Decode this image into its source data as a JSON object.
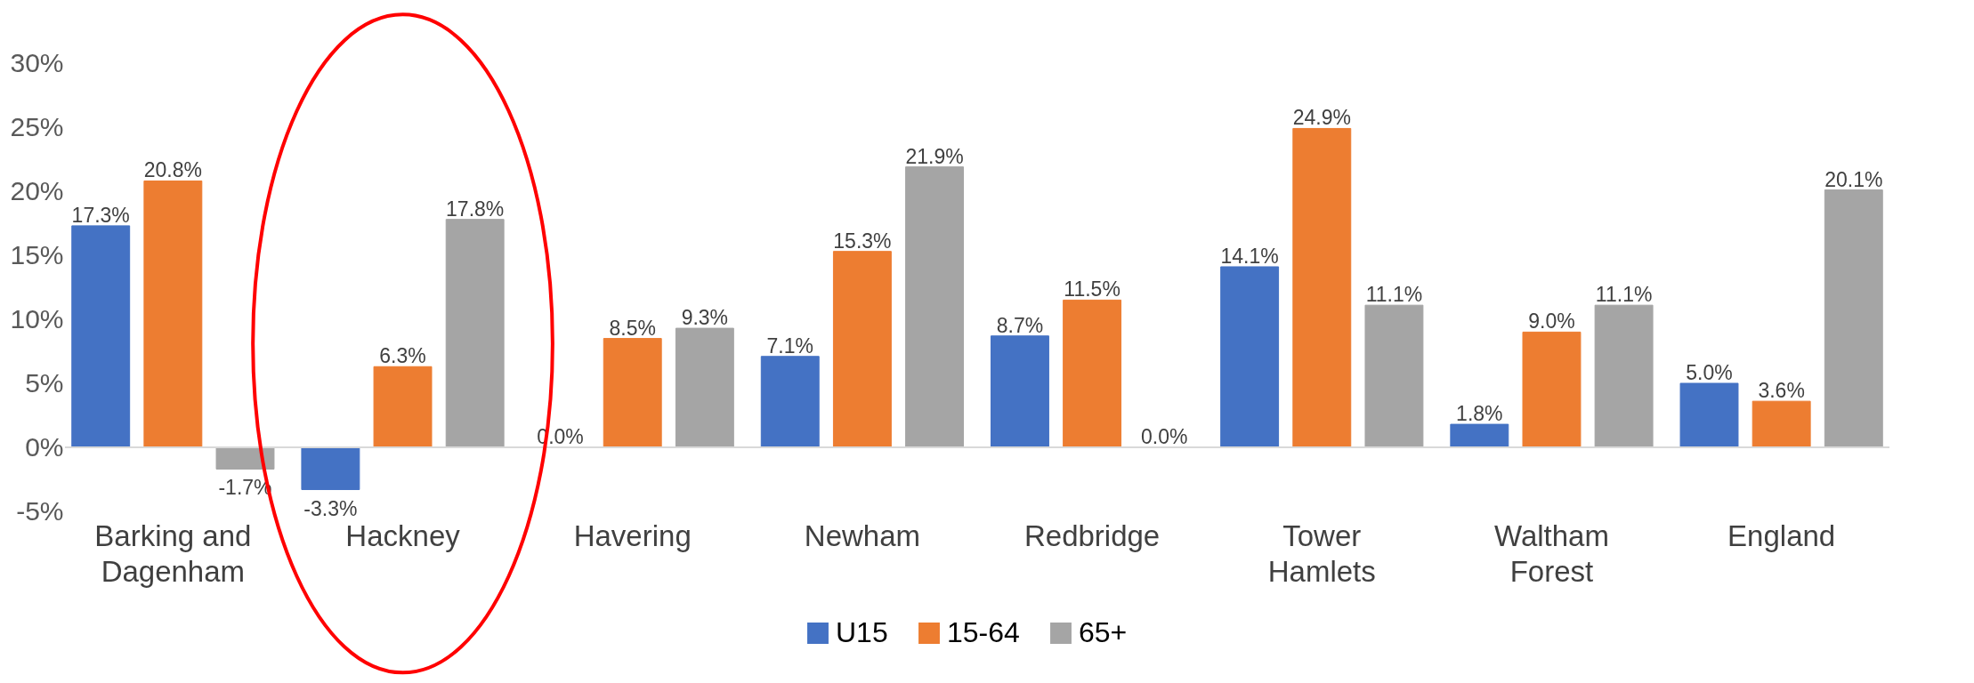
{
  "chart_data": {
    "type": "bar",
    "categories": [
      "Barking and Dagenham",
      "Hackney",
      "Havering",
      "Newham",
      "Redbridge",
      "Tower Hamlets",
      "Waltham Forest",
      "England"
    ],
    "series": [
      {
        "name": "U15",
        "color": "#4472c4",
        "values": [
          17.3,
          -3.3,
          0.0,
          7.1,
          8.7,
          14.1,
          1.8,
          5.0
        ],
        "value_labels": [
          "17.3%",
          "-3.3%",
          "0.0%",
          "7.1%",
          "8.7%",
          "14.1%",
          "1.8%",
          "5.0%"
        ]
      },
      {
        "name": "15-64",
        "color": "#ed7d31",
        "values": [
          20.8,
          6.3,
          8.5,
          15.3,
          11.5,
          24.9,
          9.0,
          3.6
        ],
        "value_labels": [
          "20.8%",
          "6.3%",
          "8.5%",
          "15.3%",
          "11.5%",
          "24.9%",
          "9.0%",
          "3.6%"
        ]
      },
      {
        "name": "65+",
        "color": "#a5a5a5",
        "values": [
          -1.7,
          17.8,
          9.3,
          21.9,
          0.0,
          11.1,
          11.1,
          20.1
        ],
        "value_labels": [
          "-1.7%",
          "17.8%",
          "9.3%",
          "21.9%",
          "0.0%",
          "11.1%",
          "11.1%",
          "20.1%"
        ]
      }
    ],
    "ylim": [
      -5,
      30
    ],
    "yticks": [
      {
        "value": -5,
        "label": "-5%"
      },
      {
        "value": 0,
        "label": "0%"
      },
      {
        "value": 5,
        "label": "5%"
      },
      {
        "value": 10,
        "label": "10%"
      },
      {
        "value": 15,
        "label": "15%"
      },
      {
        "value": 20,
        "label": "20%"
      },
      {
        "value": 25,
        "label": "25%"
      },
      {
        "value": 30,
        "label": "30%"
      }
    ],
    "grid": false,
    "legend": "bottom"
  }
}
